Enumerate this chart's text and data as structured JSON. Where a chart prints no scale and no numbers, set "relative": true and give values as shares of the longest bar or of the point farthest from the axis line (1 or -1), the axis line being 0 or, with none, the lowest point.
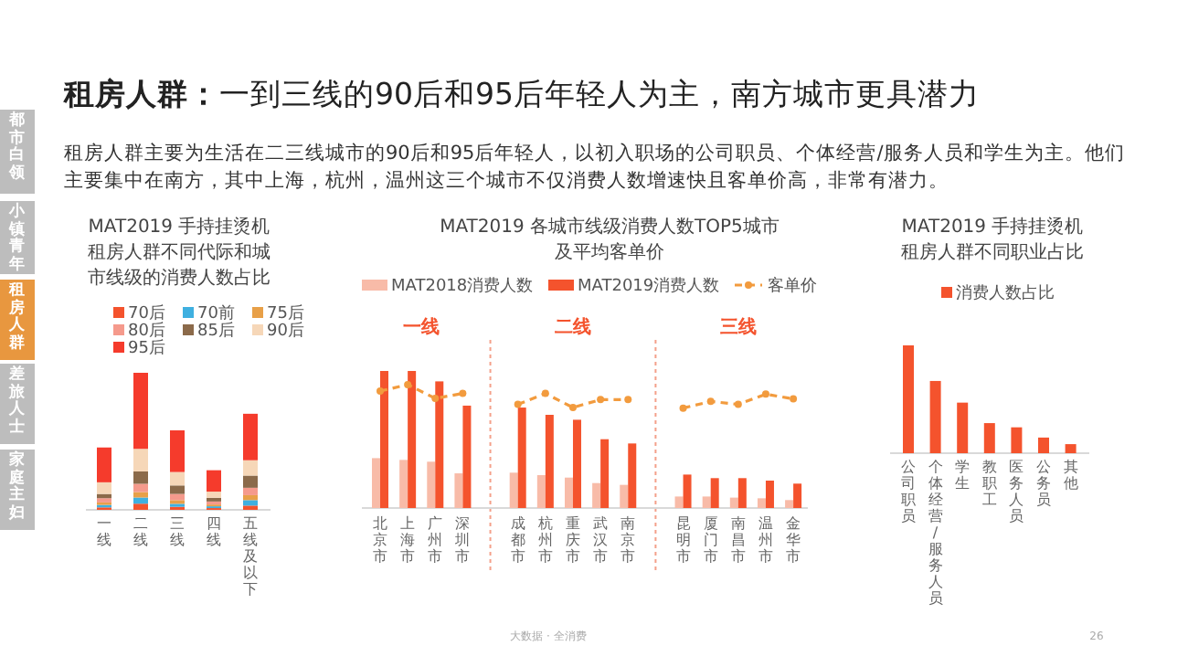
{
  "chart_data": [
    {
      "type": "other",
      "title": "**租房人群：**一到三线的90后和95后年轻人为主，南方城市更具潜力",
      "subtitle": "租房人群主要为生活在二三线城市的90后和95后年轻人，以初入职场的公司职员、个体经营/服务人员和学生为主。他们主要集中在南方，其中上海，杭州，温州这三个城市不仅消费人数增速快且客单价高，非常有潜力。",
      "annotations": [
        "都市白领",
        "小镇青年",
        "租房人群",
        "差旅人士",
        "家庭主妇",
        "大数据 · 全消费",
        "26"
      ]
    },
    {
      "type": "bar",
      "stacked": true,
      "relative": true,
      "legend": "top",
      "title": "MAT2019 手持挂烫机租房人群不同代际和城市线级的消费人数占比",
      "categories": [
        "一线",
        "二线",
        "三线",
        "四线",
        "五线及以下"
      ],
      "series": [
        {
          "name": "70后",
          "color": "#f4532d",
          "values": [
            0.018,
            0.045,
            0.022,
            0.013,
            0.031
          ]
        },
        {
          "name": "70前",
          "color": "#3fb0e0",
          "values": [
            0.018,
            0.045,
            0.022,
            0.013,
            0.04
          ]
        },
        {
          "name": "75后",
          "color": "#e8a048",
          "values": [
            0.018,
            0.04,
            0.027,
            0.013,
            0.036
          ]
        },
        {
          "name": "80后",
          "color": "#f59a8c",
          "values": [
            0.031,
            0.06,
            0.045,
            0.022,
            0.054
          ]
        },
        {
          "name": "85后",
          "color": "#8b6a4a",
          "values": [
            0.031,
            0.09,
            0.062,
            0.027,
            0.089
          ]
        },
        {
          "name": "90后",
          "color": "#f6d7b8",
          "values": [
            0.085,
            0.165,
            0.098,
            0.045,
            0.112
          ]
        },
        {
          "name": "95后",
          "color": "#f53b2c",
          "values": [
            0.254,
            0.555,
            0.304,
            0.156,
            0.339
          ]
        }
      ]
    },
    {
      "type": "bar",
      "relative": true,
      "legend": "top",
      "marker": "circle",
      "line_style": "dashed",
      "title": "MAT2019 各城市线级消费人数TOP5城市及平均客单价",
      "categories": [
        "北京市",
        "上海市",
        "广州市",
        "深圳市",
        null,
        "成都市",
        "杭州市",
        "重庆市",
        "武汉市",
        "南京市",
        null,
        "昆明市",
        "厦门市",
        "南昌市",
        "温州市",
        "金华市"
      ],
      "annotations": [
        "一线",
        "二线",
        "三线"
      ],
      "series": [
        {
          "name": "MAT2018消费人数",
          "color": "#f8bba8",
          "values": [
            0.364,
            0.351,
            0.338,
            0.253,
            null,
            0.258,
            0.24,
            0.222,
            0.182,
            0.169,
            null,
            0.084,
            0.084,
            0.076,
            0.071,
            0.058
          ]
        },
        {
          "name": "MAT2019消费人数",
          "color": "#f4532d",
          "values": [
            1,
            1,
            0.924,
            0.747,
            null,
            0.733,
            0.68,
            0.644,
            0.502,
            0.471,
            null,
            0.244,
            0.218,
            0.218,
            0.2,
            0.178
          ]
        },
        {
          "name": "客单价",
          "type": "line",
          "color": "#f29b3e",
          "values": [
            0.853,
            0.9,
            0.8,
            0.836,
            null,
            0.756,
            0.836,
            0.733,
            0.791,
            0.791,
            null,
            0.729,
            0.778,
            0.756,
            0.831,
            0.796
          ]
        }
      ]
    },
    {
      "type": "bar",
      "relative": true,
      "legend": "top",
      "title": "MAT2019 手持挂烫机租房人群不同职业占比",
      "categories": [
        "公司职员",
        "个体经营/服务人员",
        "学生",
        "教职工",
        "医务人员",
        "公务员",
        "其他"
      ],
      "series": [
        {
          "name": "消费人数占比",
          "color": "#f4532d",
          "values": [
            1,
            0.67,
            0.469,
            0.279,
            0.24,
            0.145,
            0.084
          ]
        }
      ]
    }
  ]
}
